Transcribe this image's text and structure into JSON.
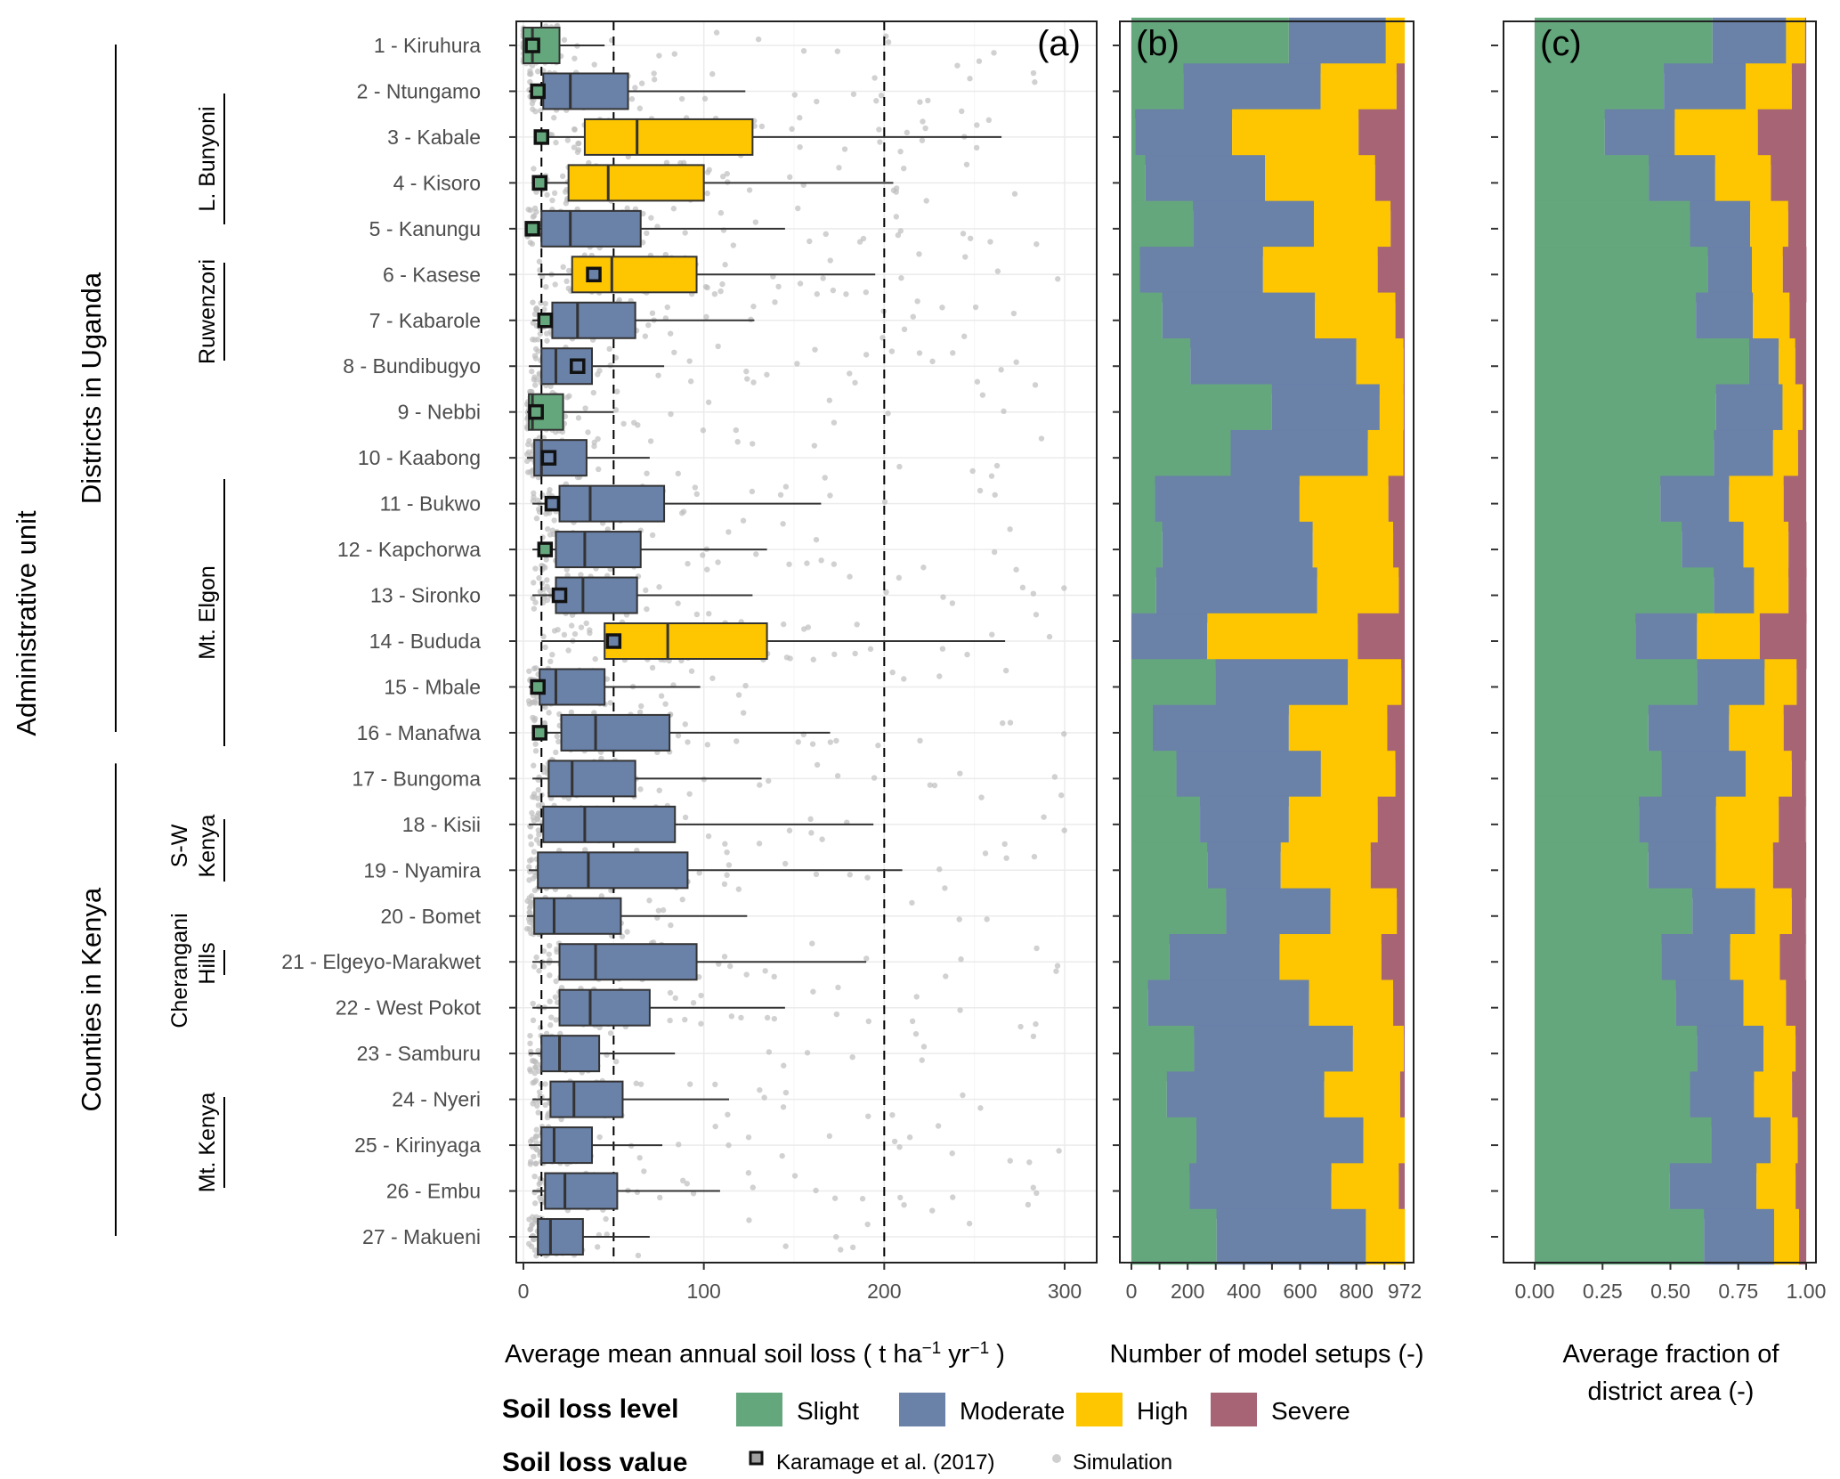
{
  "chart_data": [
    {
      "panel": "(a)",
      "type": "boxplot",
      "xlabel": "Average mean annual soil loss ( t ha^-1 yr^-1 )",
      "xlabel_parts": [
        "Average mean annual soil loss ( t ha",
        "−1",
        " yr",
        "−1",
        " )"
      ],
      "xlim": [
        -5,
        315
      ],
      "xticks": [
        0,
        100,
        200,
        300
      ],
      "xtick_labels": [
        "0",
        "100",
        "200",
        "300"
      ],
      "reference_lines": [
        10,
        50,
        200
      ],
      "grid": true,
      "categories": [
        "1 - Kiruhura",
        "2 - Ntungamo",
        "3 - Kabale",
        "4 - Kisoro",
        "5 - Kanungu",
        "6 - Kasese",
        "7 - Kabarole",
        "8 - Bundibugyo",
        "9 - Nebbi",
        "10 - Kaabong",
        "11 - Bukwo",
        "12 - Kapchorwa",
        "13 - Sironko",
        "14 - Bududa",
        "15 - Mbale",
        "16 - Manafwa",
        "17 - Bungoma",
        "18 - Kisii",
        "19 - Nyamira",
        "20 - Bomet",
        "21 - Elgeyo-Marakwet",
        "22 - West Pokot",
        "23 - Samburu",
        "24 - Nyeri",
        "25 - Kirinyaga",
        "26 - Embu",
        "27 - Makueni"
      ],
      "boxes": [
        {
          "whisker_low": 0,
          "q1": 0,
          "median": 5,
          "q3": 20,
          "whisker_high": 45,
          "level": "Slight",
          "karamage": 5,
          "karamage_level": "Slight"
        },
        {
          "whisker_low": 3,
          "q1": 11,
          "median": 26,
          "q3": 58,
          "whisker_high": 123,
          "level": "Moderate",
          "karamage": 8,
          "karamage_level": "Slight"
        },
        {
          "whisker_low": 10,
          "q1": 34,
          "median": 63,
          "q3": 127,
          "whisker_high": 265,
          "level": "High",
          "karamage": 10,
          "karamage_level": "Slight"
        },
        {
          "whisker_low": 5,
          "q1": 25,
          "median": 47,
          "q3": 100,
          "whisker_high": 205,
          "level": "High",
          "karamage": 9,
          "karamage_level": "Slight"
        },
        {
          "whisker_low": 2,
          "q1": 10,
          "median": 26,
          "q3": 65,
          "whisker_high": 145,
          "level": "Moderate",
          "karamage": 5,
          "karamage_level": "Slight"
        },
        {
          "whisker_low": 8,
          "q1": 27,
          "median": 49,
          "q3": 96,
          "whisker_high": 195,
          "level": "High",
          "karamage": 39,
          "karamage_level": "Moderate"
        },
        {
          "whisker_low": 5,
          "q1": 16,
          "median": 30,
          "q3": 62,
          "whisker_high": 128,
          "level": "Moderate",
          "karamage": 12,
          "karamage_level": "Slight"
        },
        {
          "whisker_low": 3,
          "q1": 10,
          "median": 18,
          "q3": 38,
          "whisker_high": 78,
          "level": "Moderate",
          "karamage": 30,
          "karamage_level": "Moderate"
        },
        {
          "whisker_low": 2,
          "q1": 3,
          "median": 5,
          "q3": 22,
          "whisker_high": 50,
          "level": "Slight",
          "karamage": 7,
          "karamage_level": "Slight"
        },
        {
          "whisker_low": 2,
          "q1": 6,
          "median": 10,
          "q3": 35,
          "whisker_high": 70,
          "level": "Moderate",
          "karamage": 14,
          "karamage_level": "Moderate"
        },
        {
          "whisker_low": 5,
          "q1": 20,
          "median": 37,
          "q3": 78,
          "whisker_high": 165,
          "level": "Moderate",
          "karamage": 16,
          "karamage_level": "Moderate"
        },
        {
          "whisker_low": 5,
          "q1": 18,
          "median": 34,
          "q3": 65,
          "whisker_high": 135,
          "level": "Moderate",
          "karamage": 12,
          "karamage_level": "Slight"
        },
        {
          "whisker_low": 5,
          "q1": 18,
          "median": 33,
          "q3": 63,
          "whisker_high": 127,
          "level": "Moderate",
          "karamage": 20,
          "karamage_level": "Moderate"
        },
        {
          "whisker_low": 10,
          "q1": 45,
          "median": 80,
          "q3": 135,
          "whisker_high": 267,
          "level": "High",
          "karamage": 50,
          "karamage_level": "Moderate"
        },
        {
          "whisker_low": 3,
          "q1": 9,
          "median": 18,
          "q3": 45,
          "whisker_high": 98,
          "level": "Moderate",
          "karamage": 8,
          "karamage_level": "Slight"
        },
        {
          "whisker_low": 5,
          "q1": 21,
          "median": 40,
          "q3": 81,
          "whisker_high": 170,
          "level": "Moderate",
          "karamage": 9,
          "karamage_level": "Slight"
        },
        {
          "whisker_low": 5,
          "q1": 14,
          "median": 27,
          "q3": 62,
          "whisker_high": 132,
          "level": "Moderate",
          "karamage": null,
          "karamage_level": null
        },
        {
          "whisker_low": 3,
          "q1": 11,
          "median": 34,
          "q3": 84,
          "whisker_high": 194,
          "level": "Moderate",
          "karamage": null,
          "karamage_level": null
        },
        {
          "whisker_low": 3,
          "q1": 8,
          "median": 36,
          "q3": 91,
          "whisker_high": 210,
          "level": "Moderate",
          "karamage": null,
          "karamage_level": null
        },
        {
          "whisker_low": 2,
          "q1": 6,
          "median": 17,
          "q3": 54,
          "whisker_high": 124,
          "level": "Moderate",
          "karamage": null,
          "karamage_level": null
        },
        {
          "whisker_low": 5,
          "q1": 20,
          "median": 40,
          "q3": 96,
          "whisker_high": 190,
          "level": "Moderate",
          "karamage": null,
          "karamage_level": null
        },
        {
          "whisker_low": 5,
          "q1": 20,
          "median": 37,
          "q3": 70,
          "whisker_high": 145,
          "level": "Moderate",
          "karamage": null,
          "karamage_level": null
        },
        {
          "whisker_low": 3,
          "q1": 10,
          "median": 20,
          "q3": 42,
          "whisker_high": 84,
          "level": "Moderate",
          "karamage": null,
          "karamage_level": null
        },
        {
          "whisker_low": 5,
          "q1": 15,
          "median": 28,
          "q3": 55,
          "whisker_high": 114,
          "level": "Moderate",
          "karamage": null,
          "karamage_level": null
        },
        {
          "whisker_low": 3,
          "q1": 10,
          "median": 17,
          "q3": 38,
          "whisker_high": 77,
          "level": "Moderate",
          "karamage": null,
          "karamage_level": null
        },
        {
          "whisker_low": 5,
          "q1": 12,
          "median": 23,
          "q3": 52,
          "whisker_high": 109,
          "level": "Moderate",
          "karamage": null,
          "karamage_level": null
        },
        {
          "whisker_low": 3,
          "q1": 8,
          "median": 15,
          "q3": 33,
          "whisker_high": 70,
          "level": "Moderate",
          "karamage": null,
          "karamage_level": null
        }
      ]
    },
    {
      "panel": "(b)",
      "type": "bar",
      "stacked": true,
      "orientation": "horizontal",
      "xlabel": "Number of model setups (-)",
      "xlim": [
        0,
        972
      ],
      "xticks": [
        0,
        100,
        200,
        300,
        400,
        500,
        600,
        700,
        800,
        900,
        972
      ],
      "xtick_labels": [
        "0",
        "",
        "200",
        "",
        "400",
        "",
        "600",
        "",
        "800",
        "",
        "972"
      ],
      "grid": true,
      "series": [
        {
          "name": "Slight",
          "values": [
            560,
            185,
            13,
            50,
            219,
            30,
            110,
            210,
            500,
            353,
            84,
            110,
            88,
            0,
            299,
            76,
            160,
            244,
            270,
            337,
            135,
            59,
            223,
            126,
            231,
            206,
            303
          ]
        },
        {
          "name": "Moderate",
          "values": [
            345,
            488,
            345,
            425,
            430,
            438,
            543,
            590,
            383,
            488,
            514,
            535,
            573,
            270,
            471,
            484,
            514,
            316,
            261,
            371,
            392,
            573,
            565,
            560,
            594,
            505,
            531
          ]
        },
        {
          "name": "High",
          "values": [
            67,
            270,
            450,
            392,
            273,
            408,
            286,
            168,
            85,
            126,
            316,
            286,
            290,
            535,
            190,
            350,
            265,
            316,
            320,
            236,
            362,
            299,
            181,
            270,
            147,
            240,
            139
          ]
        },
        {
          "name": "Severe",
          "values": [
            0,
            29,
            164,
            105,
            50,
            96,
            33,
            4,
            4,
            5,
            58,
            41,
            21,
            167,
            12,
            62,
            33,
            96,
            121,
            28,
            83,
            41,
            3,
            16,
            0,
            21,
            0
          ]
        }
      ]
    },
    {
      "panel": "(c)",
      "type": "bar",
      "stacked": true,
      "orientation": "horizontal",
      "xlabel": "Average fraction of district area (-)",
      "xlabel_lines": [
        "Average fraction of",
        "district area (-)"
      ],
      "xlim": [
        0,
        1
      ],
      "xticks": [
        0,
        0.25,
        0.5,
        0.75,
        1
      ],
      "xtick_labels": [
        "0.00",
        "0.25",
        "0.50",
        "0.75",
        "1.00"
      ],
      "grid": true,
      "series": [
        {
          "name": "Slight",
          "values": [
            0.655,
            0.476,
            0.258,
            0.42,
            0.572,
            0.638,
            0.594,
            0.79,
            0.668,
            0.66,
            0.463,
            0.542,
            0.66,
            0.371,
            0.598,
            0.419,
            0.467,
            0.384,
            0.419,
            0.581,
            0.467,
            0.52,
            0.598,
            0.572,
            0.651,
            0.498,
            0.624
          ]
        },
        {
          "name": "Moderate",
          "values": [
            0.271,
            0.301,
            0.258,
            0.245,
            0.222,
            0.162,
            0.21,
            0.109,
            0.245,
            0.218,
            0.253,
            0.227,
            0.148,
            0.227,
            0.249,
            0.297,
            0.31,
            0.284,
            0.249,
            0.231,
            0.253,
            0.249,
            0.245,
            0.236,
            0.218,
            0.319,
            0.258
          ]
        },
        {
          "name": "High",
          "values": [
            0.07,
            0.17,
            0.306,
            0.205,
            0.14,
            0.114,
            0.135,
            0.061,
            0.074,
            0.092,
            0.201,
            0.166,
            0.127,
            0.231,
            0.118,
            0.201,
            0.17,
            0.231,
            0.21,
            0.135,
            0.183,
            0.157,
            0.118,
            0.14,
            0.1,
            0.144,
            0.092
          ]
        },
        {
          "name": "Severe",
          "values": [
            0.004,
            0.053,
            0.178,
            0.13,
            0.066,
            0.087,
            0.061,
            0.04,
            0.013,
            0.03,
            0.083,
            0.066,
            0.066,
            0.172,
            0.035,
            0.083,
            0.052,
            0.1,
            0.122,
            0.052,
            0.096,
            0.074,
            0.039,
            0.052,
            0.031,
            0.039,
            0.026
          ]
        }
      ]
    }
  ],
  "y_axis_title": "Administrative unit",
  "groups": [
    {
      "label": "Districts in Uganda",
      "from": 1,
      "to": 16
    },
    {
      "label": "Counties in Kenya",
      "from": 17,
      "to": 27
    }
  ],
  "subgroups": [
    {
      "label": "L. Bunyoni",
      "from": 2,
      "to": 4,
      "lines": [
        "L. Bunyoni"
      ]
    },
    {
      "label": "Ruwenzori",
      "from": 6,
      "to": 7,
      "lines": [
        "Ruwenzori"
      ]
    },
    {
      "label": "Mt. Elgon",
      "from": 11,
      "to": 16,
      "lines": [
        "Mt. Elgon"
      ]
    },
    {
      "label": "S-W Kenya",
      "from": 18,
      "to": 19,
      "lines": [
        "S-W",
        "Kenya"
      ]
    },
    {
      "label": "Cherangani Hills",
      "from": 21,
      "to": 22,
      "lines": [
        "Cherangani",
        "Hills"
      ]
    },
    {
      "label": "Mt. Kenya",
      "from": 24,
      "to": 26,
      "lines": [
        "Mt. Kenya"
      ]
    }
  ],
  "legend": {
    "level_title": "Soil loss level",
    "levels": [
      {
        "name": "Slight",
        "color": "#65a77d"
      },
      {
        "name": "Moderate",
        "color": "#6a81a8"
      },
      {
        "name": "High",
        "color": "#fec600"
      },
      {
        "name": "Severe",
        "color": "#a66475"
      }
    ],
    "value_title": "Soil loss value",
    "values": [
      {
        "name": "Karamage et al. (2017)",
        "marker": "square"
      },
      {
        "name": "Simulation",
        "marker": "dot"
      }
    ]
  },
  "colors": {
    "Slight": "#65a77d",
    "Moderate": "#6a81a8",
    "High": "#fec600",
    "Severe": "#a66475",
    "karamage_fill": "#a0a0a0",
    "simulation": "#bdbdbd"
  }
}
